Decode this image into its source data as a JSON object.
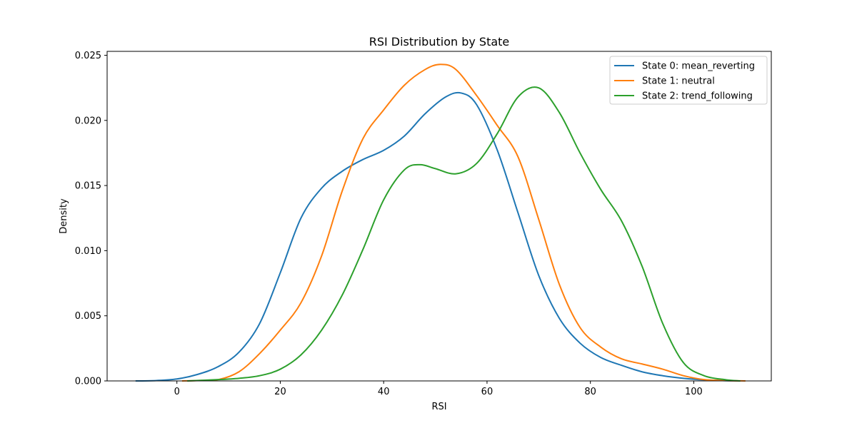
{
  "chart_data": {
    "type": "line",
    "title": "RSI Distribution by State",
    "xlabel": "RSI",
    "ylabel": "Density",
    "xlim": [
      -13.5,
      115
    ],
    "ylim": [
      0,
      0.0253
    ],
    "xticks": [
      0,
      20,
      40,
      60,
      80,
      100
    ],
    "yticks": [
      0.0,
      0.005,
      0.01,
      0.015,
      0.02,
      0.025
    ],
    "ytick_labels": [
      "0.000",
      "0.005",
      "0.010",
      "0.015",
      "0.020",
      "0.025"
    ],
    "grid": false,
    "legend_position": "top-right",
    "series": [
      {
        "name": "State 0: mean_reverting",
        "color": "#1f77b4",
        "x": [
          -8,
          -4,
          0,
          4,
          8,
          12,
          16,
          20,
          24,
          28,
          32,
          36,
          40,
          44,
          48,
          52,
          55,
          58,
          62,
          66,
          70,
          74,
          78,
          82,
          86,
          90,
          94,
          98,
          102,
          106,
          109
        ],
        "y": [
          0.0,
          3e-05,
          0.00015,
          0.0005,
          0.0011,
          0.0022,
          0.0044,
          0.0083,
          0.0125,
          0.0148,
          0.0161,
          0.017,
          0.0177,
          0.0188,
          0.0205,
          0.0218,
          0.0221,
          0.0212,
          0.0177,
          0.0129,
          0.0081,
          0.0048,
          0.0029,
          0.0018,
          0.0012,
          0.0007,
          0.0004,
          0.0002,
          8e-05,
          2e-05,
          0.0
        ]
      },
      {
        "name": "State 1: neutral",
        "color": "#ff7f0e",
        "x": [
          1,
          4,
          8,
          12,
          16,
          20,
          24,
          28,
          32,
          36,
          40,
          44,
          48,
          51,
          54,
          58,
          62,
          66,
          70,
          74,
          78,
          82,
          86,
          90,
          94,
          98,
          102,
          106,
          110
        ],
        "y": [
          0.0,
          3e-05,
          0.0001,
          0.0007,
          0.0021,
          0.0039,
          0.006,
          0.0096,
          0.0146,
          0.0186,
          0.0208,
          0.0227,
          0.0239,
          0.0243,
          0.0239,
          0.0219,
          0.0196,
          0.0172,
          0.0124,
          0.0074,
          0.0041,
          0.0026,
          0.0017,
          0.0013,
          0.0009,
          0.0004,
          0.0001,
          3e-05,
          0.0
        ]
      },
      {
        "name": "State 2: trend_following",
        "color": "#2ca02c",
        "x": [
          2,
          8,
          12,
          16,
          20,
          24,
          28,
          32,
          36,
          40,
          44,
          47,
          50,
          54,
          58,
          62,
          66,
          70,
          74,
          78,
          82,
          86,
          90,
          94,
          98,
          102,
          106,
          109
        ],
        "y": [
          0.0,
          0.0001,
          0.0002,
          0.0004,
          0.0009,
          0.002,
          0.0039,
          0.0066,
          0.0101,
          0.0139,
          0.0162,
          0.0166,
          0.0163,
          0.0159,
          0.0167,
          0.019,
          0.0218,
          0.0225,
          0.0206,
          0.0175,
          0.0147,
          0.0123,
          0.0088,
          0.0044,
          0.0014,
          0.0004,
          0.0001,
          0.0
        ]
      }
    ]
  }
}
